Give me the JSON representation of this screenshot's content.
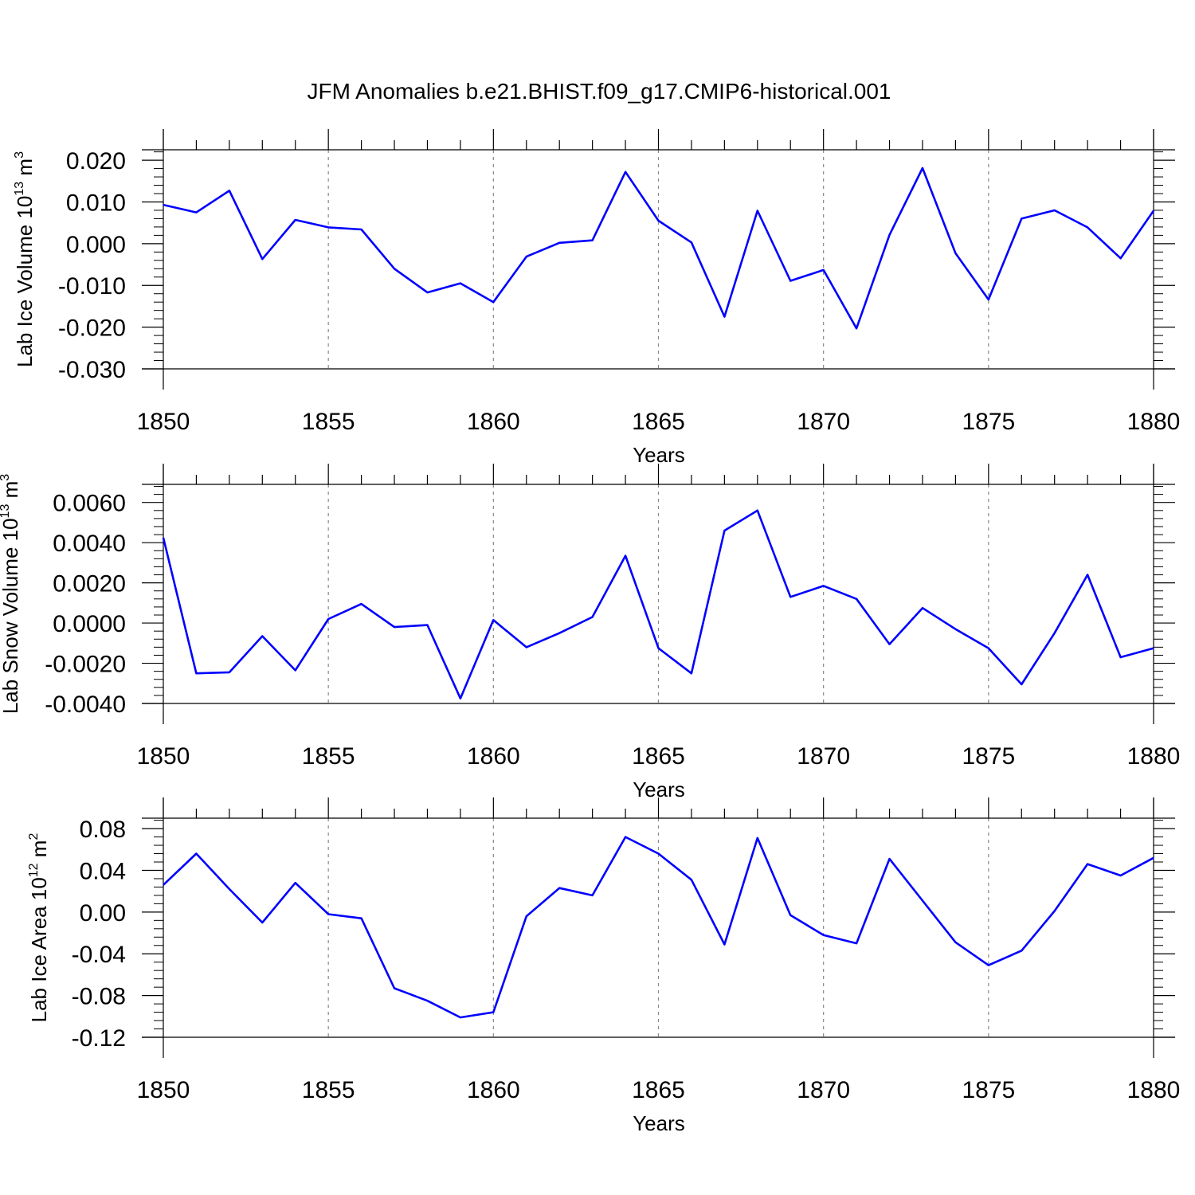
{
  "title": "JFM Anomalies b.e21.BHIST.f09_g17.CMIP6-historical.001",
  "line_color": "#0000ff",
  "chart_data": [
    {
      "type": "line",
      "xlabel": "Years",
      "ylabel": {
        "prefix": "Lab Ice Volume 10",
        "exp": "13",
        "unit": " m",
        "unit_exp": "3"
      },
      "xlim": [
        1850,
        1880
      ],
      "ylim": [
        -0.03,
        0.0225
      ],
      "xticks": [
        1850,
        1855,
        1860,
        1865,
        1870,
        1875,
        1880
      ],
      "xtick_labels": [
        "1850",
        "1855",
        "1860",
        "1865",
        "1870",
        "1875",
        "1880"
      ],
      "yticks": [
        -0.03,
        -0.02,
        -0.01,
        0.0,
        0.01,
        0.02
      ],
      "ytick_labels": [
        "-0.030",
        "-0.020",
        "-0.010",
        "0.000",
        "0.010",
        "0.020"
      ],
      "yminor_step": 0.002,
      "x": [
        1850,
        1851,
        1852,
        1853,
        1854,
        1855,
        1856,
        1857,
        1858,
        1859,
        1860,
        1861,
        1862,
        1863,
        1864,
        1865,
        1866,
        1867,
        1868,
        1869,
        1870,
        1871,
        1872,
        1873,
        1874,
        1875,
        1876,
        1877,
        1878,
        1879,
        1880
      ],
      "values": [
        0.0093,
        0.0075,
        0.0127,
        -0.0037,
        0.0057,
        0.0039,
        0.0034,
        -0.006,
        -0.0117,
        -0.0095,
        -0.014,
        -0.0031,
        0.0002,
        0.0008,
        0.0172,
        0.0055,
        0.0003,
        -0.0175,
        0.0079,
        -0.0089,
        -0.0063,
        -0.0203,
        0.0021,
        0.0181,
        -0.0023,
        -0.0134,
        0.006,
        0.008,
        0.0039,
        -0.0035,
        0.0079
      ]
    },
    {
      "type": "line",
      "xlabel": "Years",
      "ylabel": {
        "prefix": "Lab Snow Volume 10",
        "exp": "13",
        "unit": " m",
        "unit_exp": "3"
      },
      "xlim": [
        1850,
        1880
      ],
      "ylim": [
        -0.004,
        0.0069
      ],
      "xticks": [
        1850,
        1855,
        1860,
        1865,
        1870,
        1875,
        1880
      ],
      "xtick_labels": [
        "1850",
        "1855",
        "1860",
        "1865",
        "1870",
        "1875",
        "1880"
      ],
      "yticks": [
        -0.004,
        -0.002,
        0.0,
        0.002,
        0.004,
        0.006
      ],
      "ytick_labels": [
        "-0.0040",
        "-0.0020",
        "0.0000",
        "0.0020",
        "0.0040",
        "0.0060"
      ],
      "yminor_step": 0.0004,
      "x": [
        1850,
        1851,
        1852,
        1853,
        1854,
        1855,
        1856,
        1857,
        1858,
        1859,
        1860,
        1861,
        1862,
        1863,
        1864,
        1865,
        1866,
        1867,
        1868,
        1869,
        1870,
        1871,
        1872,
        1873,
        1874,
        1875,
        1876,
        1877,
        1878,
        1879,
        1880
      ],
      "values": [
        0.00425,
        -0.0025,
        -0.00245,
        -0.00065,
        -0.00235,
        0.0002,
        0.00095,
        -0.0002,
        -0.0001,
        -0.00375,
        0.00015,
        -0.0012,
        -0.0005,
        0.0003,
        0.00335,
        -0.00125,
        -0.0025,
        0.0046,
        0.0056,
        0.0013,
        0.00185,
        0.0012,
        -0.00105,
        0.00075,
        -0.0003,
        -0.00125,
        -0.00305,
        -0.0005,
        0.0024,
        -0.0017,
        -0.00125
      ]
    },
    {
      "type": "line",
      "xlabel": "Years",
      "ylabel": {
        "prefix": "Lab Ice Area 10",
        "exp": "12",
        "unit": " m",
        "unit_exp": "2"
      },
      "xlim": [
        1850,
        1880
      ],
      "ylim": [
        -0.12,
        0.09
      ],
      "xticks": [
        1850,
        1855,
        1860,
        1865,
        1870,
        1875,
        1880
      ],
      "xtick_labels": [
        "1850",
        "1855",
        "1860",
        "1865",
        "1870",
        "1875",
        "1880"
      ],
      "yticks": [
        -0.12,
        -0.08,
        -0.04,
        0.0,
        0.04,
        0.08
      ],
      "ytick_labels": [
        "-0.12",
        "-0.08",
        "-0.04",
        "0.00",
        "0.04",
        "0.08"
      ],
      "yminor_step": 0.008,
      "x": [
        1850,
        1851,
        1852,
        1853,
        1854,
        1855,
        1856,
        1857,
        1858,
        1859,
        1860,
        1861,
        1862,
        1863,
        1864,
        1865,
        1866,
        1867,
        1868,
        1869,
        1870,
        1871,
        1872,
        1873,
        1874,
        1875,
        1876,
        1877,
        1878,
        1879,
        1880
      ],
      "values": [
        0.026,
        0.056,
        0.022,
        -0.01,
        0.028,
        -0.002,
        -0.006,
        -0.073,
        -0.085,
        -0.101,
        -0.096,
        -0.004,
        0.023,
        0.016,
        0.072,
        0.056,
        0.031,
        -0.031,
        0.071,
        -0.003,
        -0.022,
        -0.03,
        0.051,
        0.011,
        -0.029,
        -0.051,
        -0.037,
        0.001,
        0.046,
        0.035,
        0.052
      ]
    }
  ]
}
